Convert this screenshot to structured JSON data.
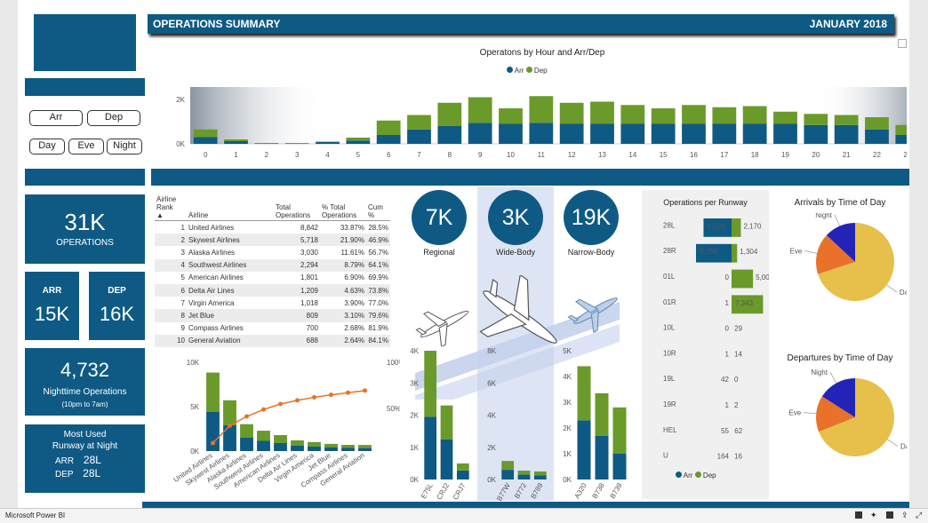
{
  "header": {
    "title": "OPERATIONS SUMMARY",
    "month": "JANUARY 2018"
  },
  "filters": {
    "arr": "Arr",
    "dep": "Dep",
    "day": "Day",
    "eve": "Eve",
    "night": "Night"
  },
  "kpis": {
    "operations_value": "31K",
    "operations_label": "OPERATIONS",
    "arr_label": "ARR",
    "arr_value": "15K",
    "dep_label": "DEP",
    "dep_value": "16K",
    "night_value": "4,732",
    "night_label": "Nighttime Operations",
    "night_sub": "(10pm to 7am)",
    "runway_title_1": "Most Used",
    "runway_title_2": "Runway at Night",
    "runway_arr_label": "ARR",
    "runway_arr_value": "28L",
    "runway_dep_label": "DEP",
    "runway_dep_value": "28L"
  },
  "table": {
    "headers": [
      "Airline Rank",
      "Airline",
      "Total Operations",
      "% Total Operations",
      "Cum %"
    ],
    "rows": [
      [
        "1",
        "United Airlines",
        "8,842",
        "33.87%",
        "28.5%"
      ],
      [
        "2",
        "Skywest Airlines",
        "5,718",
        "21.90%",
        "46.9%"
      ],
      [
        "3",
        "Alaska Airlines",
        "3,030",
        "11.61%",
        "56.7%"
      ],
      [
        "4",
        "Southwest Airlines",
        "2,294",
        "8.79%",
        "64.1%"
      ],
      [
        "5",
        "American Airlines",
        "1,801",
        "6.90%",
        "69.9%"
      ],
      [
        "6",
        "Delta Air Lines",
        "1,209",
        "4.63%",
        "73.8%"
      ],
      [
        "7",
        "Virgin America",
        "1,018",
        "3.90%",
        "77.0%"
      ],
      [
        "8",
        "Jet Blue",
        "809",
        "3.10%",
        "79.6%"
      ],
      [
        "9",
        "Compass Airlines",
        "700",
        "2.68%",
        "81.9%"
      ],
      [
        "10",
        "General Aviation",
        "688",
        "2.64%",
        "84.1%"
      ]
    ]
  },
  "aircraft": [
    {
      "value": "7K",
      "label": "Regional"
    },
    {
      "value": "3K",
      "label": "Wide-Body"
    },
    {
      "value": "19K",
      "label": "Narrow-Body"
    }
  ],
  "chart_titles": {
    "runway": "Operations per Runway",
    "arrivals_tod": "Arrivals by Time of Day",
    "departures_tod": "Departures by Time of Day"
  },
  "colors": {
    "arr": "#0e5a84",
    "dep": "#6a9a2a",
    "day": "#e6c04a",
    "eve": "#e8722a",
    "night": "#2323b8",
    "cum_line": "#e8722a",
    "header": "#0e5a84"
  },
  "statusbar": {
    "app": "Microsoft Power BI"
  },
  "chart_data": [
    {
      "type": "bar",
      "title": "Operatons by Hour and Arr/Dep",
      "categories": [
        "0",
        "1",
        "2",
        "3",
        "4",
        "5",
        "6",
        "7",
        "8",
        "9",
        "10",
        "11",
        "12",
        "13",
        "14",
        "15",
        "16",
        "17",
        "18",
        "19",
        "20",
        "21",
        "22",
        "23"
      ],
      "series": [
        {
          "name": "Arr",
          "values": [
            300,
            120,
            20,
            20,
            80,
            150,
            400,
            650,
            800,
            950,
            900,
            950,
            900,
            900,
            900,
            900,
            900,
            900,
            900,
            900,
            850,
            850,
            650,
            400
          ]
        },
        {
          "name": "Dep",
          "values": [
            350,
            80,
            10,
            10,
            20,
            130,
            650,
            650,
            1050,
            1150,
            700,
            1200,
            950,
            1000,
            850,
            700,
            850,
            750,
            800,
            550,
            500,
            450,
            550,
            450
          ]
        }
      ],
      "ylim": [
        0,
        2400
      ],
      "yticks": [
        "0K",
        "2K"
      ],
      "legend": "top"
    },
    {
      "type": "bar",
      "categories": [
        "United Airlines",
        "Skywest Airlines",
        "Alaska Airlines",
        "Southwest Airlines",
        "American Airlines",
        "Delta Air Lines",
        "Virgin America",
        "Jet Blue",
        "Compass Airlines",
        "General Aviation"
      ],
      "series": [
        {
          "name": "Arr",
          "values": [
            4400,
            2900,
            1500,
            1150,
            900,
            600,
            500,
            400,
            350,
            340
          ]
        },
        {
          "name": "Dep",
          "values": [
            4442,
            2818,
            1530,
            1144,
            901,
            609,
            518,
            409,
            350,
            348
          ]
        },
        {
          "name": "Cum %",
          "values": [
            28.5,
            46.9,
            56.7,
            64.1,
            69.9,
            73.8,
            77.0,
            79.6,
            81.9,
            84.1
          ]
        }
      ],
      "ylim": [
        0,
        10000
      ],
      "y2lim": [
        0,
        100
      ],
      "yticks": [
        "10K",
        "5K",
        "0K"
      ],
      "y2ticks": [
        "100%",
        "50%"
      ]
    },
    {
      "type": "bar",
      "categories": [
        "E75L",
        "CRJ2",
        "CRJ7"
      ],
      "series": [
        {
          "name": "Arr",
          "values": [
            1950,
            1250,
            280
          ]
        },
        {
          "name": "Dep",
          "values": [
            2050,
            1050,
            220
          ]
        }
      ],
      "ylim": [
        0,
        4000
      ],
      "yticks": [
        "4K",
        "3K",
        "2K",
        "1K",
        "0K"
      ]
    },
    {
      "type": "bar",
      "categories": [
        "B77W",
        "B772",
        "B789"
      ],
      "series": [
        {
          "name": "Arr",
          "values": [
            600,
            300,
            250
          ]
        },
        {
          "name": "Dep",
          "values": [
            550,
            250,
            250
          ]
        }
      ],
      "ylim": [
        0,
        8000
      ],
      "yticks": [
        "8K",
        "6K",
        "4K",
        "2K",
        "0K"
      ]
    },
    {
      "type": "bar",
      "categories": [
        "A320",
        "B738",
        "B739"
      ],
      "series": [
        {
          "name": "Arr",
          "values": [
            2300,
            1700,
            1000
          ]
        },
        {
          "name": "Dep",
          "values": [
            2100,
            1650,
            1800
          ]
        }
      ],
      "ylim": [
        0,
        5000
      ],
      "yticks": [
        "5K",
        "4K",
        "3K",
        "2K",
        "1K",
        "0K"
      ]
    },
    {
      "type": "bar",
      "title": "Operations per Runway",
      "categories": [
        "28L",
        "28R",
        "01L",
        "01R",
        "10L",
        "10R",
        "19L",
        "19R",
        "HEL",
        "U"
      ],
      "series": [
        {
          "name": "Arr",
          "values": [
            6539,
            8295,
            0,
            1,
            0,
            1,
            42,
            1,
            55,
            164
          ]
        },
        {
          "name": "Dep",
          "values": [
            2170,
            1304,
            5004,
            7343,
            29,
            14,
            0,
            2,
            62,
            16
          ]
        }
      ],
      "legend": "bottom"
    },
    {
      "type": "pie",
      "title": "Arrivals by Time of Day",
      "labels": [
        "Day",
        "Eve",
        "Night"
      ],
      "values": [
        70,
        17,
        13
      ]
    },
    {
      "type": "pie",
      "title": "Departures by Time of Day",
      "labels": [
        "Day",
        "Eve",
        "Night"
      ],
      "values": [
        69,
        15,
        16
      ]
    }
  ]
}
